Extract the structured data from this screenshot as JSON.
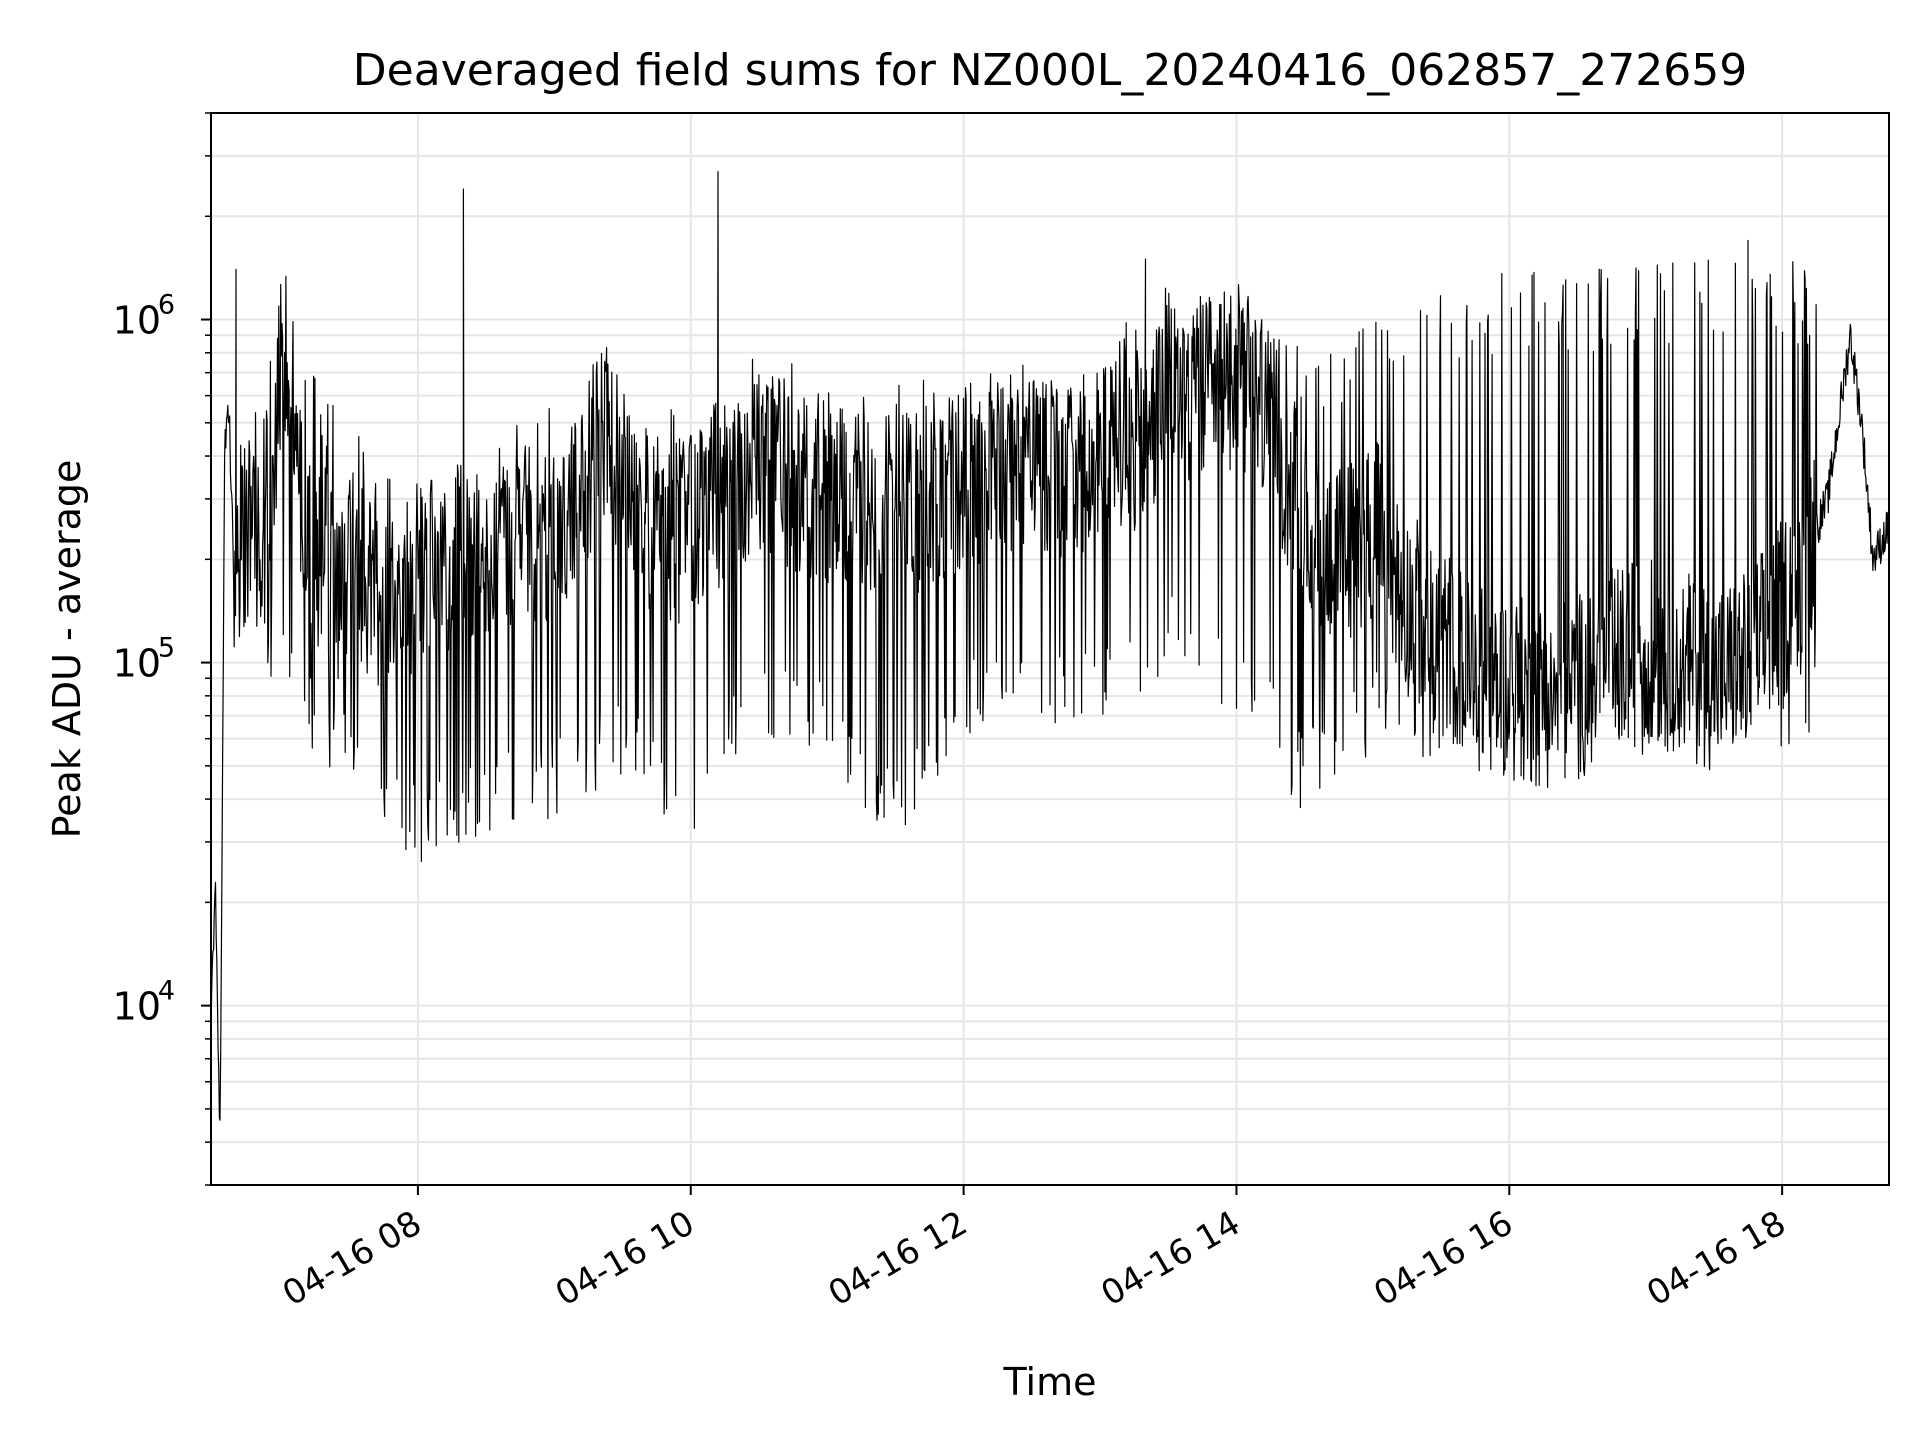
{
  "chart_data": {
    "type": "line",
    "title": "Deaveraged field sums for NZ000L_20240416_062857_272659",
    "xlabel": "Time",
    "ylabel": "Peak ADU - average",
    "yscale": "log",
    "ylim": [
      3000,
      4000000
    ],
    "xlim": [
      "2024-04-16 06:29",
      "2024-04-16 18:47"
    ],
    "x_ticks": [
      {
        "time": "2024-04-16 08:00",
        "label": "04-16 08"
      },
      {
        "time": "2024-04-16 10:00",
        "label": "04-16 10"
      },
      {
        "time": "2024-04-16 12:00",
        "label": "04-16 12"
      },
      {
        "time": "2024-04-16 14:00",
        "label": "04-16 14"
      },
      {
        "time": "2024-04-16 16:00",
        "label": "04-16 16"
      },
      {
        "time": "2024-04-16 18:00",
        "label": "04-16 18"
      }
    ],
    "y_ticks": [
      {
        "value": 10000,
        "base": "10",
        "exp": "4"
      },
      {
        "value": 100000,
        "base": "10",
        "exp": "5"
      },
      {
        "value": 1000000,
        "base": "10",
        "exp": "6"
      }
    ],
    "grid": true,
    "line_color": "#000000",
    "grid_color": "#e6e6e6",
    "series": [
      {
        "x": [
          "2024-04-16 06:29",
          "2024-04-16 06:31",
          "2024-04-16 06:33",
          "2024-04-16 06:35",
          "2024-04-16 06:37",
          "2024-04-16 06:39",
          "2024-04-16 06:42",
          "2024-04-16 06:45",
          "2024-04-16 06:48",
          "2024-04-16 06:51",
          "2024-04-16 06:55",
          "2024-04-16 07:00",
          "2024-04-16 07:05",
          "2024-04-16 07:10",
          "2024-04-16 07:15",
          "2024-04-16 07:20",
          "2024-04-16 07:25",
          "2024-04-16 07:30",
          "2024-04-16 07:40",
          "2024-04-16 07:50",
          "2024-04-16 08:00",
          "2024-04-16 08:15",
          "2024-04-16 08:20",
          "2024-04-16 08:30",
          "2024-04-16 08:45",
          "2024-04-16 09:00",
          "2024-04-16 09:10",
          "2024-04-16 09:20",
          "2024-04-16 09:35",
          "2024-04-16 09:50",
          "2024-04-16 10:00",
          "2024-04-16 10:10",
          "2024-04-16 10:20",
          "2024-04-16 10:30",
          "2024-04-16 10:45",
          "2024-04-16 11:00",
          "2024-04-16 11:15",
          "2024-04-16 11:30",
          "2024-04-16 11:45",
          "2024-04-16 12:00",
          "2024-04-16 12:15",
          "2024-04-16 12:30",
          "2024-04-16 12:45",
          "2024-04-16 13:00",
          "2024-04-16 13:10",
          "2024-04-16 13:20",
          "2024-04-16 13:30",
          "2024-04-16 13:45",
          "2024-04-16 14:00",
          "2024-04-16 14:15",
          "2024-04-16 14:30",
          "2024-04-16 14:45",
          "2024-04-16 15:00",
          "2024-04-16 15:15",
          "2024-04-16 15:30",
          "2024-04-16 15:45",
          "2024-04-16 16:00",
          "2024-04-16 16:15",
          "2024-04-16 16:30",
          "2024-04-16 16:45",
          "2024-04-16 17:00",
          "2024-04-16 17:15",
          "2024-04-16 17:30",
          "2024-04-16 17:45",
          "2024-04-16 18:00",
          "2024-04-16 18:10",
          "2024-04-16 18:20",
          "2024-04-16 18:30",
          "2024-04-16 18:35",
          "2024-04-16 18:40",
          "2024-04-16 18:47"
        ],
        "y": [
          9000,
          22000,
          4000,
          450000,
          520000,
          180000,
          250000,
          200000,
          300000,
          250000,
          180000,
          900000,
          600000,
          250000,
          180000,
          200000,
          150000,
          200000,
          160000,
          140000,
          180000,
          200000,
          200000,
          220000,
          230000,
          250000,
          280000,
          500000,
          280000,
          220000,
          260000,
          300000,
          320000,
          380000,
          350000,
          300000,
          280000,
          300000,
          280000,
          350000,
          380000,
          400000,
          380000,
          400000,
          450000,
          420000,
          700000,
          600000,
          700000,
          500000,
          250000,
          200000,
          250000,
          150000,
          120000,
          90000,
          85000,
          80000,
          85000,
          100000,
          110000,
          100000,
          90000,
          100000,
          140000,
          200000,
          300000,
          900000,
          500000,
          200000,
          250000
        ]
      }
    ],
    "spikes": {
      "x": [
        "2024-04-16 08:20",
        "2024-04-16 10:12",
        "2024-04-16 06:40",
        "2024-04-16 13:20",
        "2024-04-16 17:45"
      ],
      "y": [
        2400000,
        2700000,
        1400000,
        1500000,
        1700000
      ]
    },
    "envelope": {
      "x": [
        "2024-04-16 06:39",
        "2024-04-16 07:00",
        "2024-04-16 07:30",
        "2024-04-16 08:00",
        "2024-04-16 08:30",
        "2024-04-16 09:00",
        "2024-04-16 09:30",
        "2024-04-16 10:00",
        "2024-04-16 10:30",
        "2024-04-16 11:00",
        "2024-04-16 11:30",
        "2024-04-16 12:00",
        "2024-04-16 12:30",
        "2024-04-16 13:00",
        "2024-04-16 13:30",
        "2024-04-16 14:00",
        "2024-04-16 14:30",
        "2024-04-16 15:00",
        "2024-04-16 15:30",
        "2024-04-16 16:00",
        "2024-04-16 16:30",
        "2024-04-16 17:00",
        "2024-04-16 17:30",
        "2024-04-16 18:00",
        "2024-04-16 18:15"
      ],
      "upper": [
        400000,
        1000000,
        500000,
        300000,
        400000,
        700000,
        500000,
        600000,
        800000,
        700000,
        650000,
        700000,
        650000,
        800000,
        1400000,
        1200000,
        900000,
        1000000,
        1300000,
        1400000,
        1400000,
        1500000,
        1500000,
        1600000,
        1300000
      ],
      "lower": [
        80000,
        70000,
        40000,
        25000,
        30000,
        35000,
        45000,
        30000,
        60000,
        50000,
        30000,
        60000,
        60000,
        60000,
        90000,
        70000,
        35000,
        55000,
        45000,
        55000,
        50000,
        50000,
        55000,
        55000,
        60000
      ]
    }
  }
}
